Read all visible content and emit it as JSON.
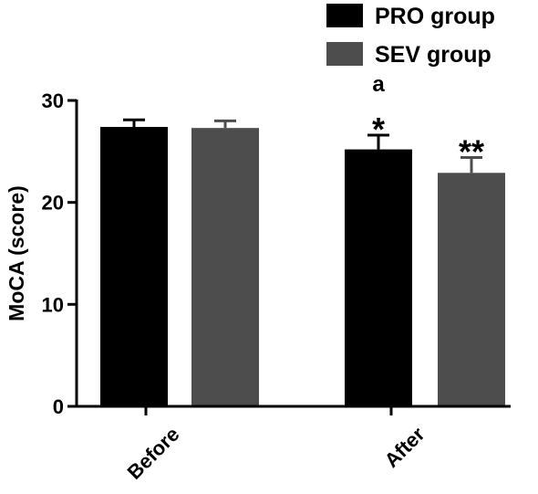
{
  "chart_data": {
    "type": "bar",
    "ylabel": "MoCA (score)",
    "ylim": [
      0,
      30
    ],
    "yticks": [
      0,
      10,
      20,
      30
    ],
    "categories": [
      "Before",
      "After"
    ],
    "series": [
      {
        "name": "PRO group",
        "color": "#000000",
        "values": [
          27.4,
          25.2
        ],
        "errors": [
          0.7,
          1.4
        ]
      },
      {
        "name": "SEV group",
        "color": "#4d4d4d",
        "values": [
          27.3,
          22.9
        ],
        "errors": [
          0.7,
          1.5
        ]
      }
    ],
    "annotations": [
      {
        "category": "After",
        "series": "PRO group",
        "lines": [
          "a",
          "*"
        ]
      },
      {
        "category": "After",
        "series": "SEV group",
        "lines": [
          "**"
        ]
      }
    ],
    "legend_position": "top-right",
    "grid": false
  }
}
